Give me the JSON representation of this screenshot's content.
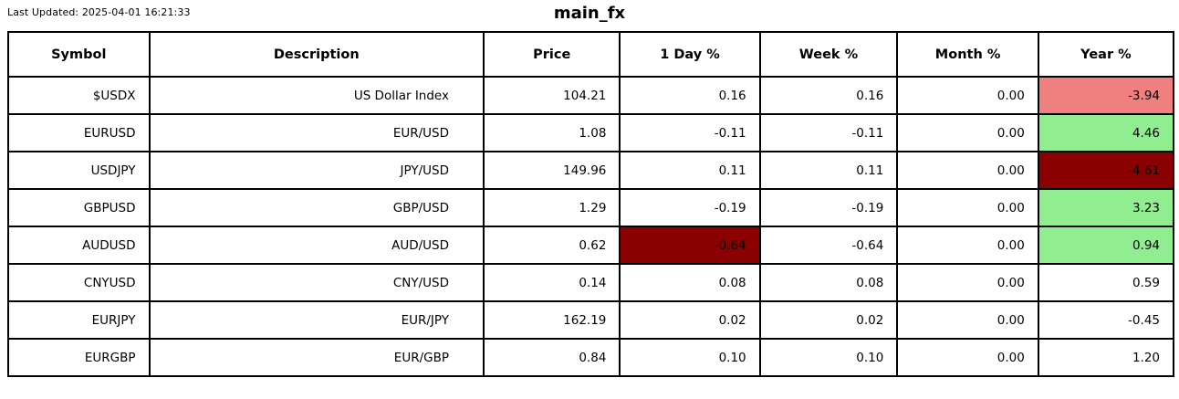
{
  "header": {
    "last_updated": "Last Updated: 2025-04-01 16:21:33",
    "title": "main_fx"
  },
  "colors": {
    "background": "#FFFFFF",
    "border": "#000000",
    "text": "#000000",
    "highlight_negative_light": "#F08080",
    "highlight_positive_light": "#90EE90",
    "highlight_negative_dark": "#8B0000"
  },
  "chart_data": {
    "type": "table",
    "title": "main_fx",
    "last_updated": "2025-04-01 16:21:33",
    "columns": [
      "Symbol",
      "Description",
      "Price",
      "1 Day %",
      "Week %",
      "Month %",
      "Year %"
    ],
    "rows": [
      {
        "cells": [
          "$USDX",
          "US Dollar Index",
          "104.21",
          "0.16",
          "0.16",
          "0.00",
          "-3.94"
        ],
        "bg": {
          "6": "#F08080"
        }
      },
      {
        "cells": [
          "EURUSD",
          "EUR/USD",
          "1.08",
          "-0.11",
          "-0.11",
          "0.00",
          "4.46"
        ],
        "bg": {
          "6": "#90EE90"
        }
      },
      {
        "cells": [
          "USDJPY",
          "JPY/USD",
          "149.96",
          "0.11",
          "0.11",
          "0.00",
          "-4.61"
        ],
        "bg": {
          "6": "#8B0000"
        }
      },
      {
        "cells": [
          "GBPUSD",
          "GBP/USD",
          "1.29",
          "-0.19",
          "-0.19",
          "0.00",
          "3.23"
        ],
        "bg": {
          "6": "#90EE90"
        }
      },
      {
        "cells": [
          "AUDUSD",
          "AUD/USD",
          "0.62",
          "-0.64",
          "-0.64",
          "0.00",
          "0.94"
        ],
        "bg": {
          "3": "#8B0000",
          "6": "#90EE90"
        }
      },
      {
        "cells": [
          "CNYUSD",
          "CNY/USD",
          "0.14",
          "0.08",
          "0.08",
          "0.00",
          "0.59"
        ],
        "bg": {}
      },
      {
        "cells": [
          "EURJPY",
          "EUR/JPY",
          "162.19",
          "0.02",
          "0.02",
          "0.00",
          "-0.45"
        ],
        "bg": {}
      },
      {
        "cells": [
          "EURGBP",
          "EUR/GBP",
          "0.84",
          "0.10",
          "0.10",
          "0.00",
          "1.20"
        ],
        "bg": {}
      }
    ]
  }
}
